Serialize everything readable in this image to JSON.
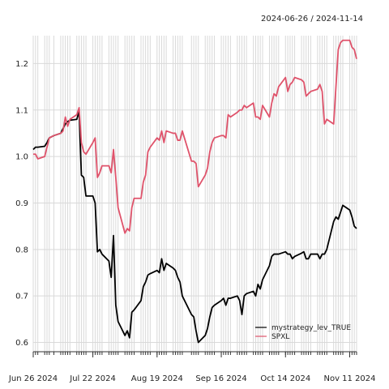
{
  "chart_data": {
    "type": "line",
    "date_range": "2024-06-26 / 2024-11-14",
    "x_tick_labels": [
      "Jun 26 2024",
      "Jul 22 2024",
      "Aug 19 2024",
      "Sep 16 2024",
      "Oct 14 2024",
      "Nov 11 2024"
    ],
    "x_ticks": [
      "2024-06-26",
      "2024-07-22",
      "2024-08-19",
      "2024-09-16",
      "2024-10-14",
      "2024-11-11"
    ],
    "y_ticks": [
      0.6,
      0.7,
      0.8,
      0.9,
      1.0,
      1.1,
      1.2
    ],
    "y_tick_labels": [
      "0.6",
      "0.7",
      "0.8",
      "0.9",
      "1.0",
      "1.1",
      "1.2"
    ],
    "xlim": [
      "2024-06-26",
      "2024-11-14"
    ],
    "ylim": [
      0.58,
      1.26
    ],
    "grid": true,
    "legend_position": "bottom-right",
    "series": [
      {
        "name": "mystrategy_lev_TRUE",
        "color": "#000000",
        "points": [
          [
            "2024-06-26",
            1.015
          ],
          [
            "2024-06-27",
            1.02
          ],
          [
            "2024-06-28",
            1.02
          ],
          [
            "2024-07-01",
            1.022
          ],
          [
            "2024-07-02",
            1.03
          ],
          [
            "2024-07-03",
            1.04
          ],
          [
            "2024-07-05",
            1.045
          ],
          [
            "2024-07-08",
            1.05
          ],
          [
            "2024-07-09",
            1.06
          ],
          [
            "2024-07-10",
            1.07
          ],
          [
            "2024-07-11",
            1.075
          ],
          [
            "2024-07-12",
            1.078
          ],
          [
            "2024-07-15",
            1.08
          ],
          [
            "2024-07-16",
            1.097
          ],
          [
            "2024-07-17",
            0.96
          ],
          [
            "2024-07-18",
            0.955
          ],
          [
            "2024-07-19",
            0.915
          ],
          [
            "2024-07-22",
            0.915
          ],
          [
            "2024-07-23",
            0.9
          ],
          [
            "2024-07-24",
            0.795
          ],
          [
            "2024-07-25",
            0.8
          ],
          [
            "2024-07-26",
            0.79
          ],
          [
            "2024-07-29",
            0.775
          ],
          [
            "2024-07-30",
            0.74
          ],
          [
            "2024-07-31",
            0.83
          ],
          [
            "2024-08-01",
            0.68
          ],
          [
            "2024-08-02",
            0.645
          ],
          [
            "2024-08-05",
            0.615
          ],
          [
            "2024-08-06",
            0.625
          ],
          [
            "2024-08-07",
            0.61
          ],
          [
            "2024-08-08",
            0.665
          ],
          [
            "2024-08-09",
            0.67
          ],
          [
            "2024-08-12",
            0.69
          ],
          [
            "2024-08-13",
            0.72
          ],
          [
            "2024-08-14",
            0.73
          ],
          [
            "2024-08-15",
            0.745
          ],
          [
            "2024-08-16",
            0.748
          ],
          [
            "2024-08-19",
            0.755
          ],
          [
            "2024-08-20",
            0.75
          ],
          [
            "2024-08-21",
            0.78
          ],
          [
            "2024-08-22",
            0.755
          ],
          [
            "2024-08-23",
            0.77
          ],
          [
            "2024-08-26",
            0.76
          ],
          [
            "2024-08-27",
            0.755
          ],
          [
            "2024-08-28",
            0.74
          ],
          [
            "2024-08-29",
            0.73
          ],
          [
            "2024-08-30",
            0.7
          ],
          [
            "2024-09-03",
            0.66
          ],
          [
            "2024-09-04",
            0.655
          ],
          [
            "2024-09-05",
            0.625
          ],
          [
            "2024-09-06",
            0.6
          ],
          [
            "2024-09-09",
            0.615
          ],
          [
            "2024-09-10",
            0.63
          ],
          [
            "2024-09-11",
            0.655
          ],
          [
            "2024-09-12",
            0.675
          ],
          [
            "2024-09-13",
            0.68
          ],
          [
            "2024-09-16",
            0.69
          ],
          [
            "2024-09-17",
            0.695
          ],
          [
            "2024-09-18",
            0.68
          ],
          [
            "2024-09-19",
            0.695
          ],
          [
            "2024-09-20",
            0.695
          ],
          [
            "2024-09-23",
            0.7
          ],
          [
            "2024-09-24",
            0.69
          ],
          [
            "2024-09-25",
            0.66
          ],
          [
            "2024-09-26",
            0.7
          ],
          [
            "2024-09-27",
            0.705
          ],
          [
            "2024-09-30",
            0.71
          ],
          [
            "2024-10-01",
            0.7
          ],
          [
            "2024-10-02",
            0.725
          ],
          [
            "2024-10-03",
            0.715
          ],
          [
            "2024-10-04",
            0.735
          ],
          [
            "2024-10-07",
            0.765
          ],
          [
            "2024-10-08",
            0.785
          ],
          [
            "2024-10-09",
            0.79
          ],
          [
            "2024-10-10",
            0.79
          ],
          [
            "2024-10-11",
            0.79
          ],
          [
            "2024-10-14",
            0.795
          ],
          [
            "2024-10-15",
            0.79
          ],
          [
            "2024-10-16",
            0.79
          ],
          [
            "2024-10-17",
            0.78
          ],
          [
            "2024-10-18",
            0.785
          ],
          [
            "2024-10-21",
            0.792
          ],
          [
            "2024-10-22",
            0.795
          ],
          [
            "2024-10-23",
            0.78
          ],
          [
            "2024-10-24",
            0.78
          ],
          [
            "2024-10-25",
            0.79
          ],
          [
            "2024-10-28",
            0.79
          ],
          [
            "2024-10-29",
            0.78
          ],
          [
            "2024-10-30",
            0.79
          ],
          [
            "2024-10-31",
            0.79
          ],
          [
            "2024-11-01",
            0.8
          ],
          [
            "2024-11-04",
            0.86
          ],
          [
            "2024-11-05",
            0.87
          ],
          [
            "2024-11-06",
            0.865
          ],
          [
            "2024-11-07",
            0.88
          ],
          [
            "2024-11-08",
            0.895
          ],
          [
            "2024-11-11",
            0.885
          ],
          [
            "2024-11-12",
            0.87
          ],
          [
            "2024-11-13",
            0.85
          ],
          [
            "2024-11-14",
            0.845
          ]
        ]
      },
      {
        "name": "SPXL",
        "color": "#df536b",
        "points": [
          [
            "2024-06-26",
            1.005
          ],
          [
            "2024-06-27",
            1.005
          ],
          [
            "2024-06-28",
            0.995
          ],
          [
            "2024-07-01",
            1.0
          ],
          [
            "2024-07-02",
            1.02
          ],
          [
            "2024-07-03",
            1.04
          ],
          [
            "2024-07-05",
            1.045
          ],
          [
            "2024-07-08",
            1.05
          ],
          [
            "2024-07-09",
            1.055
          ],
          [
            "2024-07-10",
            1.085
          ],
          [
            "2024-07-11",
            1.065
          ],
          [
            "2024-07-12",
            1.08
          ],
          [
            "2024-07-15",
            1.09
          ],
          [
            "2024-07-16",
            1.105
          ],
          [
            "2024-07-17",
            1.03
          ],
          [
            "2024-07-18",
            1.01
          ],
          [
            "2024-07-19",
            1.005
          ],
          [
            "2024-07-22",
            1.03
          ],
          [
            "2024-07-23",
            1.04
          ],
          [
            "2024-07-24",
            0.955
          ],
          [
            "2024-07-25",
            0.965
          ],
          [
            "2024-07-26",
            0.98
          ],
          [
            "2024-07-29",
            0.98
          ],
          [
            "2024-07-30",
            0.965
          ],
          [
            "2024-07-31",
            1.015
          ],
          [
            "2024-08-01",
            0.955
          ],
          [
            "2024-08-02",
            0.89
          ],
          [
            "2024-08-05",
            0.835
          ],
          [
            "2024-08-06",
            0.845
          ],
          [
            "2024-08-07",
            0.84
          ],
          [
            "2024-08-08",
            0.89
          ],
          [
            "2024-08-09",
            0.91
          ],
          [
            "2024-08-12",
            0.91
          ],
          [
            "2024-08-13",
            0.945
          ],
          [
            "2024-08-14",
            0.96
          ],
          [
            "2024-08-15",
            1.01
          ],
          [
            "2024-08-16",
            1.02
          ],
          [
            "2024-08-19",
            1.04
          ],
          [
            "2024-08-20",
            1.035
          ],
          [
            "2024-08-21",
            1.055
          ],
          [
            "2024-08-22",
            1.03
          ],
          [
            "2024-08-23",
            1.055
          ],
          [
            "2024-08-26",
            1.05
          ],
          [
            "2024-08-27",
            1.05
          ],
          [
            "2024-08-28",
            1.035
          ],
          [
            "2024-08-29",
            1.035
          ],
          [
            "2024-08-30",
            1.055
          ],
          [
            "2024-09-03",
            0.99
          ],
          [
            "2024-09-04",
            0.99
          ],
          [
            "2024-09-05",
            0.985
          ],
          [
            "2024-09-06",
            0.935
          ],
          [
            "2024-09-09",
            0.96
          ],
          [
            "2024-09-10",
            0.975
          ],
          [
            "2024-09-11",
            1.01
          ],
          [
            "2024-09-12",
            1.03
          ],
          [
            "2024-09-13",
            1.04
          ],
          [
            "2024-09-16",
            1.045
          ],
          [
            "2024-09-17",
            1.045
          ],
          [
            "2024-09-18",
            1.04
          ],
          [
            "2024-09-19",
            1.09
          ],
          [
            "2024-09-20",
            1.085
          ],
          [
            "2024-09-23",
            1.095
          ],
          [
            "2024-09-24",
            1.1
          ],
          [
            "2024-09-25",
            1.1
          ],
          [
            "2024-09-26",
            1.11
          ],
          [
            "2024-09-27",
            1.105
          ],
          [
            "2024-09-30",
            1.115
          ],
          [
            "2024-10-01",
            1.085
          ],
          [
            "2024-10-02",
            1.085
          ],
          [
            "2024-10-03",
            1.08
          ],
          [
            "2024-10-04",
            1.11
          ],
          [
            "2024-10-07",
            1.085
          ],
          [
            "2024-10-08",
            1.115
          ],
          [
            "2024-10-09",
            1.135
          ],
          [
            "2024-10-10",
            1.13
          ],
          [
            "2024-10-11",
            1.15
          ],
          [
            "2024-10-14",
            1.17
          ],
          [
            "2024-10-15",
            1.14
          ],
          [
            "2024-10-16",
            1.155
          ],
          [
            "2024-10-17",
            1.16
          ],
          [
            "2024-10-18",
            1.17
          ],
          [
            "2024-10-21",
            1.165
          ],
          [
            "2024-10-22",
            1.16
          ],
          [
            "2024-10-23",
            1.13
          ],
          [
            "2024-10-24",
            1.135
          ],
          [
            "2024-10-25",
            1.14
          ],
          [
            "2024-10-28",
            1.145
          ],
          [
            "2024-10-29",
            1.155
          ],
          [
            "2024-10-30",
            1.14
          ],
          [
            "2024-10-31",
            1.07
          ],
          [
            "2024-11-01",
            1.08
          ],
          [
            "2024-11-04",
            1.07
          ],
          [
            "2024-11-05",
            1.15
          ],
          [
            "2024-11-06",
            1.23
          ],
          [
            "2024-11-07",
            1.245
          ],
          [
            "2024-11-08",
            1.25
          ],
          [
            "2024-11-11",
            1.25
          ],
          [
            "2024-11-12",
            1.235
          ],
          [
            "2024-11-13",
            1.23
          ],
          [
            "2024-11-14",
            1.21
          ]
        ]
      }
    ]
  }
}
